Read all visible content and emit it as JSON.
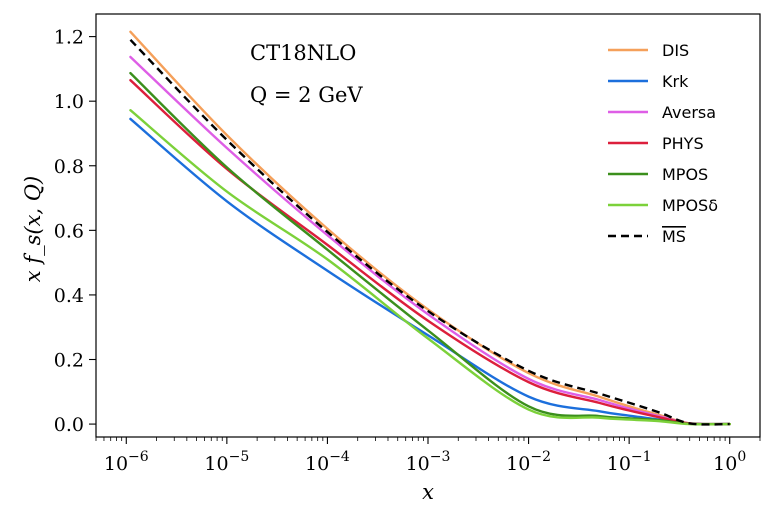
{
  "chart_data": {
    "type": "line",
    "xscale": "log",
    "xlabel": "x",
    "ylabel": "x f_s(x, Q)",
    "xlim": [
      5e-07,
      2
    ],
    "ylim": [
      -0.04,
      1.27
    ],
    "annotations": [
      "CT18NLO",
      "Q = 2 GeV"
    ],
    "legend_position": "top-right",
    "x_ticks": [
      {
        "value": 1e-06,
        "base": "10",
        "exp": "−6"
      },
      {
        "value": 1e-05,
        "base": "10",
        "exp": "−5"
      },
      {
        "value": 0.0001,
        "base": "10",
        "exp": "−4"
      },
      {
        "value": 0.001,
        "base": "10",
        "exp": "−3"
      },
      {
        "value": 0.01,
        "base": "10",
        "exp": "−2"
      },
      {
        "value": 0.1,
        "base": "10",
        "exp": "−1"
      },
      {
        "value": 1,
        "base": "10",
        "exp": "0"
      }
    ],
    "y_ticks": [
      {
        "value": 0.0,
        "label": "0.0"
      },
      {
        "value": 0.2,
        "label": "0.2"
      },
      {
        "value": 0.4,
        "label": "0.4"
      },
      {
        "value": 0.6,
        "label": "0.6"
      },
      {
        "value": 0.8,
        "label": "0.8"
      },
      {
        "value": 1.0,
        "label": "1.0"
      },
      {
        "value": 1.2,
        "label": "1.2"
      }
    ],
    "x": [
      1.1e-06,
      1e-05,
      0.0001,
      0.001,
      0.01,
      0.05,
      0.1,
      0.2,
      0.4,
      1.0
    ],
    "series": [
      {
        "name": "DIS",
        "color": "#f5a05a",
        "dash": false,
        "values": [
          1.215,
          0.895,
          0.605,
          0.355,
          0.158,
          0.085,
          0.055,
          0.028,
          0.002,
          0.0
        ]
      },
      {
        "name": "Krk",
        "color": "#1c6fdc",
        "dash": false,
        "values": [
          0.945,
          0.69,
          0.475,
          0.275,
          0.085,
          0.04,
          0.026,
          0.014,
          0.001,
          0.0
        ]
      },
      {
        "name": "Aversa",
        "color": "#de5ee6",
        "dash": false,
        "values": [
          1.137,
          0.855,
          0.585,
          0.34,
          0.14,
          0.075,
          0.048,
          0.024,
          0.002,
          0.0
        ]
      },
      {
        "name": "PHYS",
        "color": "#dc1f3c",
        "dash": false,
        "values": [
          1.065,
          0.79,
          0.555,
          0.32,
          0.13,
          0.066,
          0.042,
          0.021,
          0.002,
          0.0
        ]
      },
      {
        "name": "MPOS",
        "color": "#3b8f1c",
        "dash": false,
        "values": [
          1.087,
          0.795,
          0.54,
          0.29,
          0.055,
          0.025,
          0.018,
          0.012,
          0.001,
          0.0
        ]
      },
      {
        "name": "MPOSδ",
        "color": "#7cd13a",
        "dash": false,
        "values": [
          0.972,
          0.72,
          0.51,
          0.265,
          0.045,
          0.02,
          0.014,
          0.009,
          0.0,
          0.0
        ]
      },
      {
        "name": "MS",
        "color": "#000000",
        "dash": true,
        "overline": true,
        "values": [
          1.19,
          0.88,
          0.595,
          0.35,
          0.165,
          0.095,
          0.066,
          0.036,
          0.002,
          0.0
        ]
      }
    ]
  }
}
